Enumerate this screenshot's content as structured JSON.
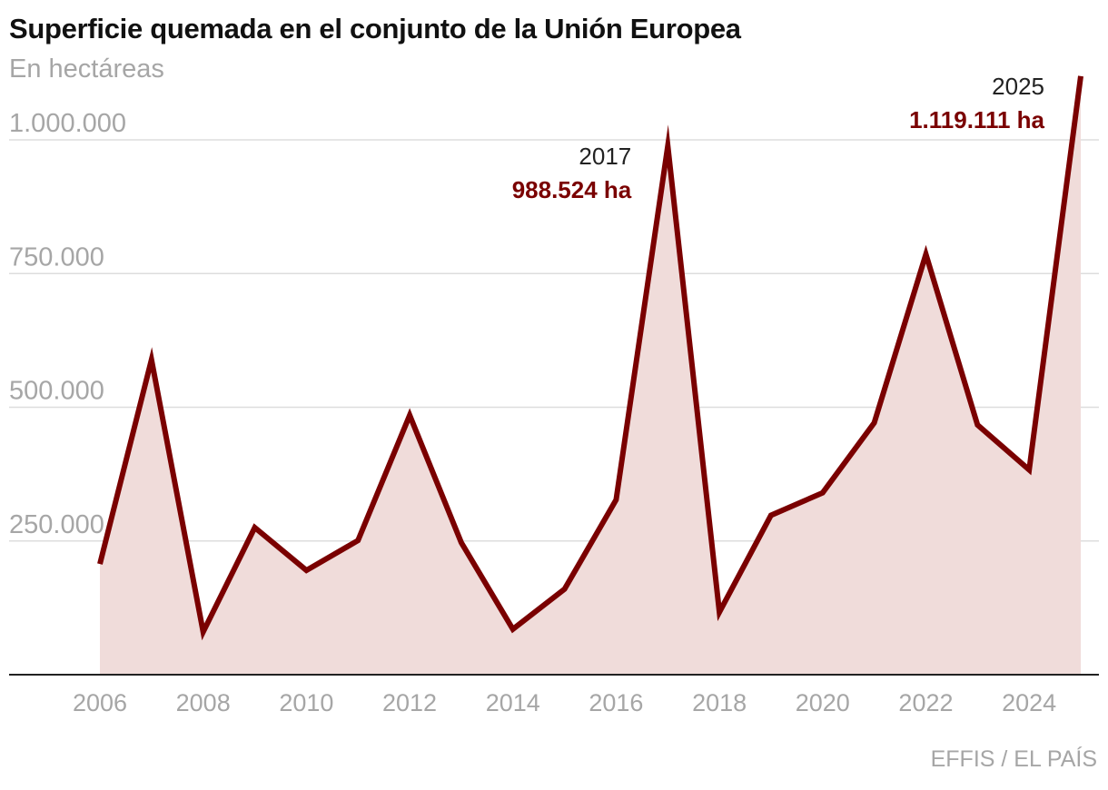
{
  "title": "Superficie quemada en el conjunto de la Unión Europea",
  "subtitle": "En hectáreas",
  "source": "EFFIS / EL PAÍS",
  "colors": {
    "line": "#7a0000",
    "area": "#f0dcda",
    "grid": "#dddddd",
    "axis": "#222222",
    "tick": "#a6a6a6"
  },
  "chart_data": {
    "type": "area",
    "title": "Superficie quemada en el conjunto de la Unión Europea",
    "ylabel": "En hectáreas",
    "x": [
      2006,
      2007,
      2008,
      2009,
      2010,
      2011,
      2012,
      2013,
      2014,
      2015,
      2016,
      2017,
      2018,
      2019,
      2020,
      2021,
      2022,
      2023,
      2024,
      2025
    ],
    "series": [
      {
        "name": "Superficie quemada (ha)",
        "values": [
          207000,
          589000,
          80000,
          275000,
          195000,
          251000,
          485000,
          247000,
          85000,
          160000,
          327000,
          988524,
          117000,
          298000,
          340000,
          471000,
          786000,
          467000,
          383000,
          1119111
        ]
      }
    ],
    "ylim": [
      0,
      1000000
    ],
    "yticks": [
      250000,
      500000,
      750000,
      1000000
    ],
    "ytick_labels": [
      "250.000",
      "500.000",
      "750.000",
      "1.000.000"
    ],
    "xticks": [
      2006,
      2008,
      2010,
      2012,
      2014,
      2016,
      2018,
      2020,
      2022,
      2024
    ],
    "xtick_labels": [
      "2006",
      "2008",
      "2010",
      "2012",
      "2014",
      "2016",
      "2018",
      "2020",
      "2022",
      "2024"
    ],
    "grid": true,
    "annotations": [
      {
        "year": 2017,
        "year_label": "2017",
        "value_label": "988.524 ha"
      },
      {
        "year": 2025,
        "year_label": "2025",
        "value_label": "1.119.111 ha"
      }
    ]
  }
}
